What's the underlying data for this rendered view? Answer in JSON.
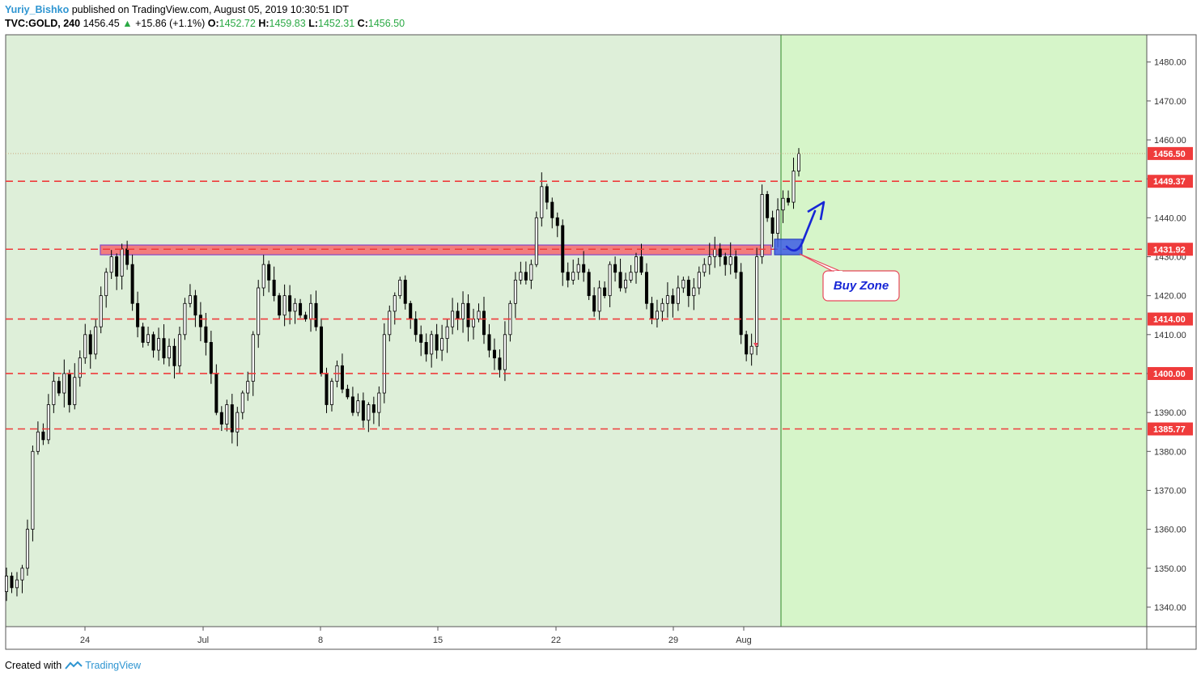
{
  "header": {
    "author": "Yuriy_Bishko",
    "published": "published on TradingView.com, August 05, 2019 10:30:51 IDT",
    "symbol": "TVC:GOLD, 240",
    "last": "1456.45",
    "change": "+15.86 (+1.1%)",
    "o_label": "O:",
    "o_value": "1452.72",
    "h_label": "H:",
    "h_value": "1459.83",
    "l_label": "L:",
    "l_value": "1452.31",
    "c_label": "C:",
    "c_value": "1456.50"
  },
  "footer": {
    "created_with": "Created with",
    "brand": "TradingView"
  },
  "colors": {
    "bg_main": "#deefd9",
    "bg_future": "#d6f5c9",
    "level": "#ef3b3b",
    "zone_fill": "#f27d7d",
    "zone_border": "#8447c7",
    "buy_box": "#3d5ce4",
    "arrow": "#1726d6"
  },
  "chart_data": {
    "type": "candlestick",
    "y_range": [
      1335,
      1487
    ],
    "y_ticks": [
      "1340.00",
      "1350.00",
      "1360.00",
      "1370.00",
      "1380.00",
      "1390.00",
      "1400.00",
      "1410.00",
      "1420.00",
      "1430.00",
      "1440.00",
      "1450.00",
      "1460.00",
      "1470.00",
      "1480.00"
    ],
    "x_ticks": [
      "24",
      "Jul",
      "8",
      "15",
      "22",
      "29",
      "Aug"
    ],
    "levels": [
      {
        "value": 1449.37,
        "label": "1449.37"
      },
      {
        "value": 1431.92,
        "label": "1431.92"
      },
      {
        "value": 1414.0,
        "label": "1414.00"
      },
      {
        "value": 1400.0,
        "label": "1400.00"
      },
      {
        "value": 1385.77,
        "label": "1385.77"
      }
    ],
    "last_price": {
      "value": 1456.5,
      "label": "1456.50"
    },
    "resistance_zone": [
      1430.5,
      1433.0
    ],
    "annotation": "Buy Zone",
    "closes": [
      1348,
      1345,
      1347,
      1350,
      1360,
      1380,
      1385,
      1383,
      1392,
      1398,
      1395,
      1400,
      1392,
      1399,
      1404,
      1410,
      1405,
      1412,
      1420,
      1426,
      1430,
      1425,
      1432,
      1428,
      1418,
      1412,
      1408,
      1410,
      1406,
      1409,
      1404,
      1407,
      1402,
      1410,
      1418,
      1420,
      1415,
      1412,
      1408,
      1400,
      1390,
      1387,
      1392,
      1385,
      1390,
      1395,
      1398,
      1410,
      1422,
      1428,
      1424,
      1420,
      1415,
      1420,
      1416,
      1418,
      1415,
      1414,
      1418,
      1412,
      1400,
      1392,
      1398,
      1402,
      1396,
      1394,
      1390,
      1393,
      1388,
      1392,
      1390,
      1395,
      1410,
      1416,
      1420,
      1424,
      1418,
      1414,
      1410,
      1408,
      1405,
      1410,
      1406,
      1409,
      1412,
      1416,
      1414,
      1418,
      1412,
      1414,
      1416,
      1410,
      1406,
      1404,
      1401,
      1410,
      1418,
      1424,
      1426,
      1424,
      1428,
      1440,
      1448,
      1444,
      1440,
      1438,
      1426,
      1424,
      1426,
      1428,
      1426,
      1420,
      1416,
      1422,
      1420,
      1428,
      1426,
      1422,
      1424,
      1426,
      1430,
      1426,
      1418,
      1414,
      1416,
      1418,
      1420,
      1418,
      1422,
      1424,
      1420,
      1422,
      1426,
      1428,
      1430,
      1432,
      1430,
      1428,
      1430,
      1426,
      1410,
      1405,
      1407,
      1430,
      1446,
      1440,
      1436,
      1442,
      1445,
      1444,
      1452,
      1456.5
    ]
  }
}
